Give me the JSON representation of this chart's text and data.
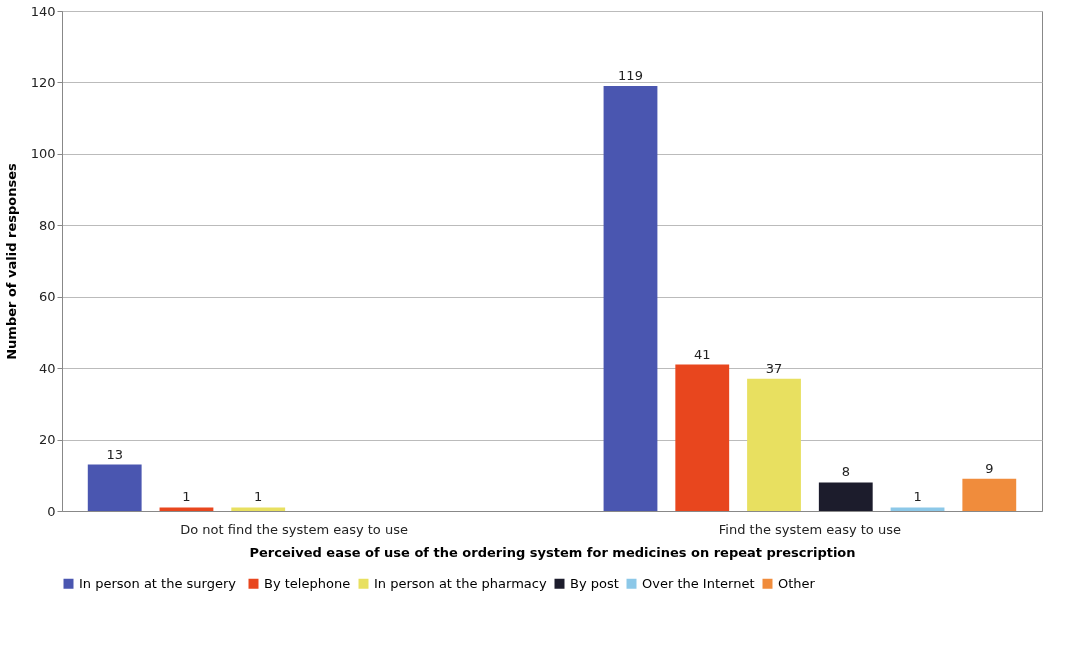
{
  "chart_data": {
    "type": "bar",
    "xlabel": "Perceived ease of use of the ordering system for medicines on repeat prescription",
    "ylabel": "Number of valid responses",
    "categories": [
      "Do not find the system easy to use",
      "Find the system easy to use"
    ],
    "series": [
      {
        "name": "In person  at the surgery",
        "color": "#4a56b0",
        "values": [
          13,
          119
        ]
      },
      {
        "name": "By telephone",
        "color": "#e8461e",
        "values": [
          1,
          41
        ]
      },
      {
        "name": "In person at the pharmacy",
        "color": "#e8e060",
        "values": [
          1,
          37
        ]
      },
      {
        "name": "By post",
        "color": "#1c1c2c",
        "values": [
          null,
          8
        ]
      },
      {
        "name": "Over the Internet",
        "color": "#8cc8e8",
        "values": [
          null,
          1
        ]
      },
      {
        "name": "Other",
        "color": "#f08c3c",
        "values": [
          null,
          9
        ]
      }
    ],
    "ylim": [
      0,
      140
    ],
    "yticks": [
      0,
      20,
      40,
      60,
      80,
      100,
      120,
      140
    ],
    "grid": "y",
    "legend": "bottom",
    "data_labels": true
  }
}
